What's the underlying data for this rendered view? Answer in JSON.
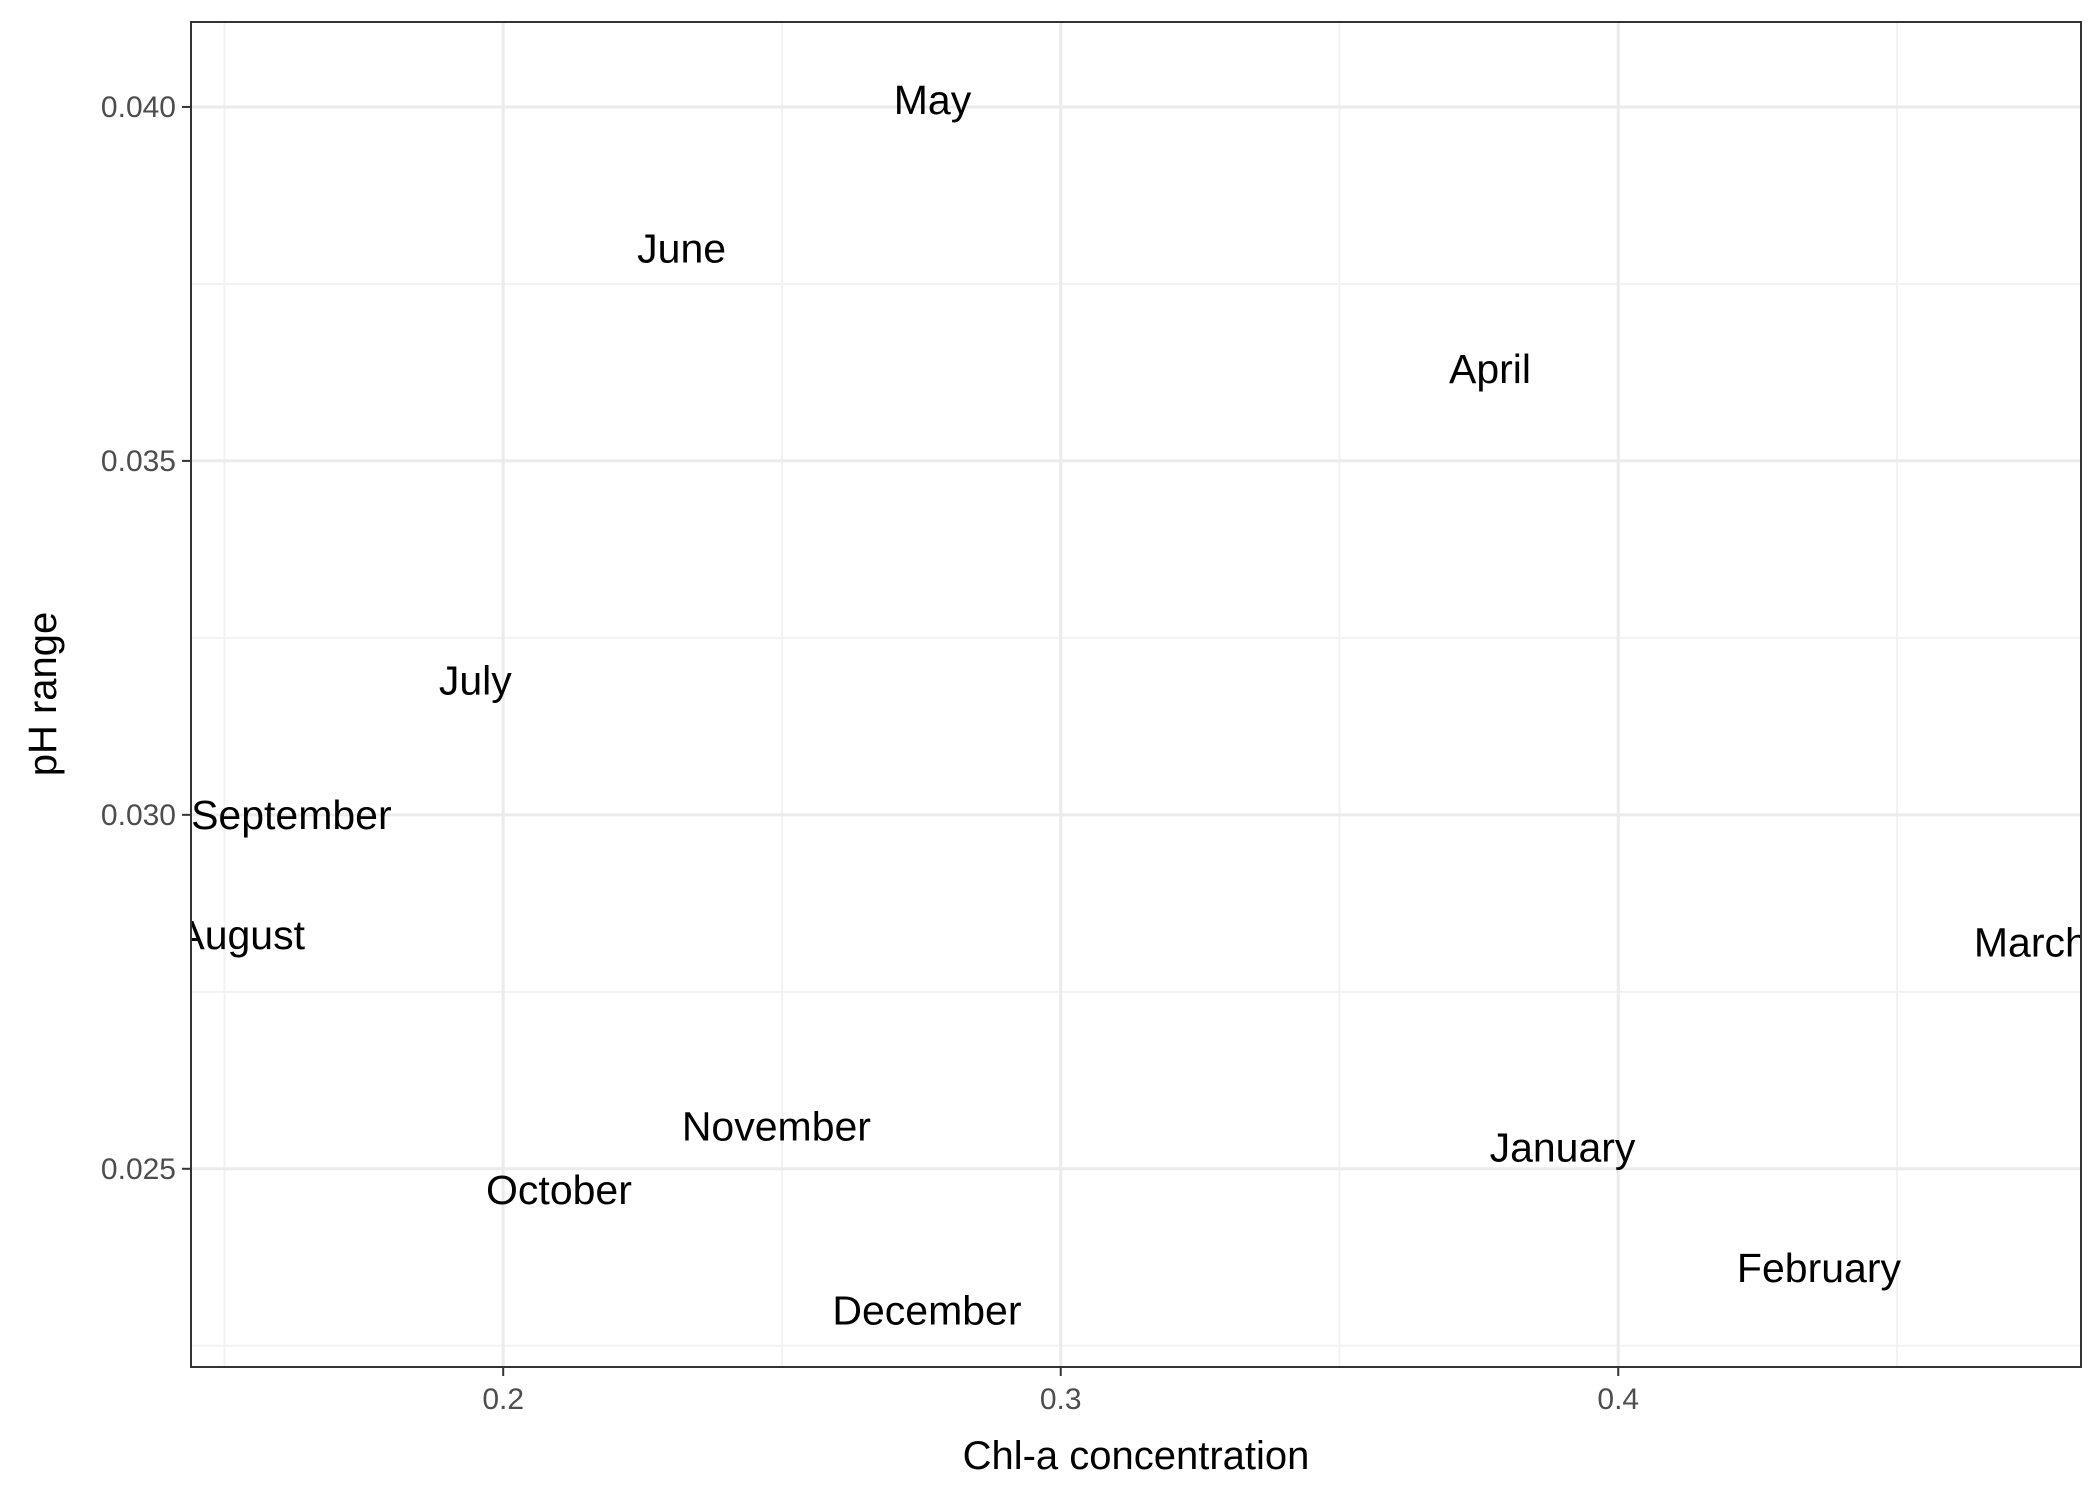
{
  "chart_data": {
    "type": "scatter",
    "title": "",
    "xlabel": "Chl-a concentration",
    "ylabel": "pH range",
    "xlim": [
      0.144,
      0.483
    ],
    "ylim": [
      0.0222,
      0.0412
    ],
    "x_major_ticks": [
      0.2,
      0.3,
      0.4
    ],
    "x_major_tick_labels": [
      "0.2",
      "0.3",
      "0.4"
    ],
    "x_minor_ticks": [
      0.15,
      0.25,
      0.35,
      0.45
    ],
    "y_major_ticks": [
      0.025,
      0.03,
      0.035,
      0.04
    ],
    "y_major_tick_labels": [
      "0.025",
      "0.030",
      "0.035",
      "0.040"
    ],
    "y_minor_ticks": [
      0.0225,
      0.0275,
      0.0325,
      0.0375
    ],
    "grid": true,
    "points": [
      {
        "label": "January",
        "x": 0.39,
        "y": 0.0253
      },
      {
        "label": "February",
        "x": 0.436,
        "y": 0.0236
      },
      {
        "label": "March",
        "x": 0.474,
        "y": 0.0282
      },
      {
        "label": "April",
        "x": 0.377,
        "y": 0.0363
      },
      {
        "label": "May",
        "x": 0.277,
        "y": 0.0401
      },
      {
        "label": "June",
        "x": 0.232,
        "y": 0.038
      },
      {
        "label": "July",
        "x": 0.195,
        "y": 0.0319
      },
      {
        "label": "August",
        "x": 0.153,
        "y": 0.0283
      },
      {
        "label": "September",
        "x": 0.162,
        "y": 0.03
      },
      {
        "label": "October",
        "x": 0.21,
        "y": 0.0247
      },
      {
        "label": "November",
        "x": 0.249,
        "y": 0.0256
      },
      {
        "label": "December",
        "x": 0.276,
        "y": 0.023
      }
    ]
  },
  "colors": {
    "panel_border": "#333333",
    "grid_major": "#ebebeb",
    "grid_minor": "#f2f2f2",
    "tick_mark": "#333333",
    "tick_label": "#4d4d4d",
    "text": "#000000"
  }
}
